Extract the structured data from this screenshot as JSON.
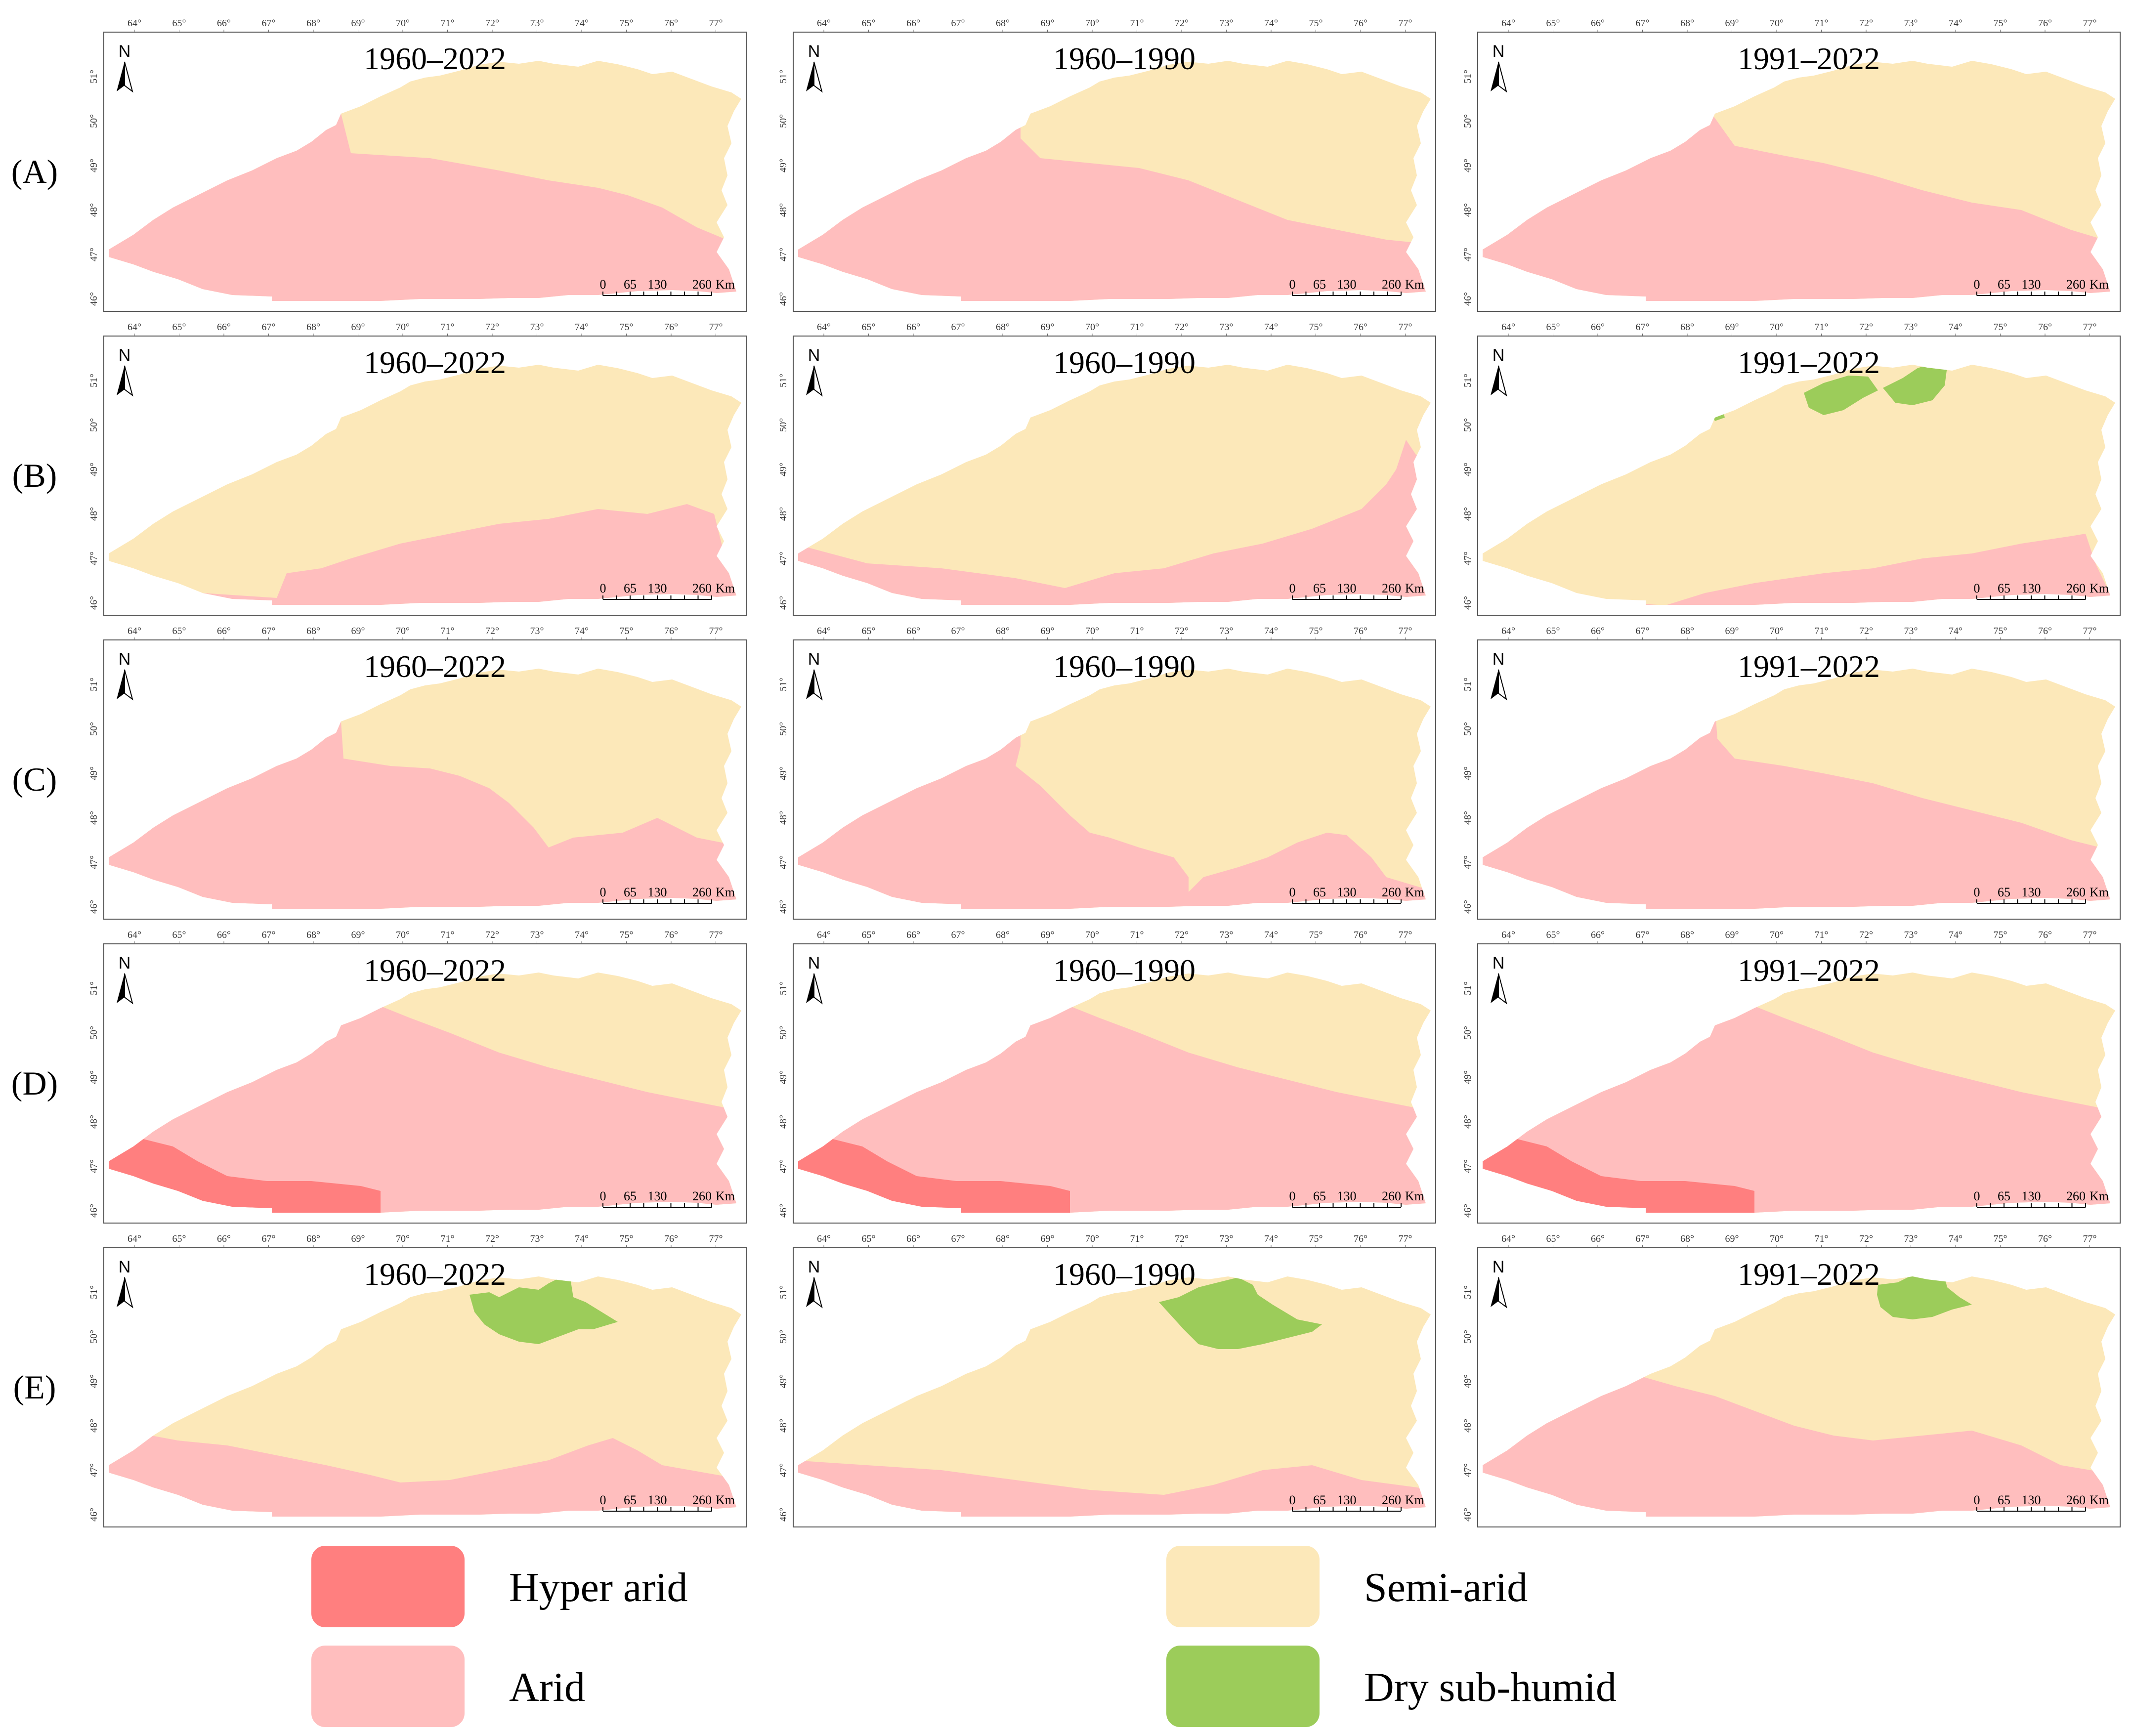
{
  "figure": {
    "row_labels": [
      "(A)",
      "(B)",
      "(C)",
      "(D)",
      "(E)"
    ],
    "period_titles": [
      "1960–2022",
      "1960–1990",
      "1991–2022"
    ],
    "longitude_ticks": [
      "64°",
      "65°",
      "66°",
      "67°",
      "68°",
      "69°",
      "70°",
      "71°",
      "72°",
      "73°",
      "74°",
      "75°",
      "76°",
      "77°"
    ],
    "latitude_ticks": [
      "51°",
      "50°",
      "49°",
      "48°",
      "47°",
      "46°"
    ],
    "north_label": "N",
    "scale_bar": {
      "labels": [
        "0",
        "65",
        "130",
        "260"
      ],
      "unit": "Km"
    }
  },
  "legend": {
    "items": [
      {
        "label": "Hyper arid",
        "color": "#ff7f7f"
      },
      {
        "label": "Arid",
        "color": "#ffbebe"
      },
      {
        "label": "Semi-arid",
        "color": "#fce8b9"
      },
      {
        "label": "Dry sub-humid",
        "color": "#9ccc5a"
      }
    ]
  },
  "colors": {
    "hyper_arid": "#ff7f7f",
    "arid": "#ffbebe",
    "semi_arid": "#fce8b9",
    "dry_sub_humid": "#9ccc5a",
    "frame": "#555555"
  }
}
